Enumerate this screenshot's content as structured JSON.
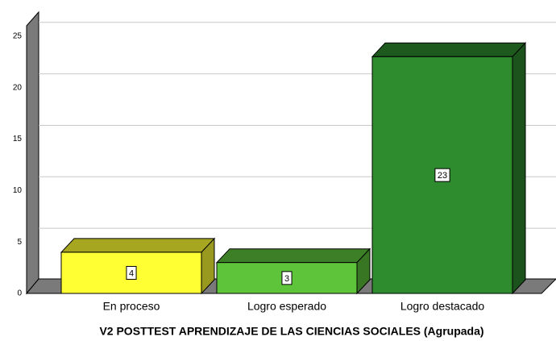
{
  "chart_data": {
    "type": "bar",
    "x_label": "V2 POSTTEST APRENDIZAJE DE LAS CIENCIAS SOCIALES (Agrupada)",
    "categories": [
      "En proceso",
      "Logro esperado",
      "Logro destacado"
    ],
    "values": [
      4,
      3,
      23
    ],
    "colors": [
      "#ffff33",
      "#5ec43a",
      "#2e8b2e"
    ],
    "ylim": [
      0,
      26
    ],
    "yticks": [
      0,
      5,
      10,
      15,
      20,
      25
    ],
    "grid": true
  }
}
